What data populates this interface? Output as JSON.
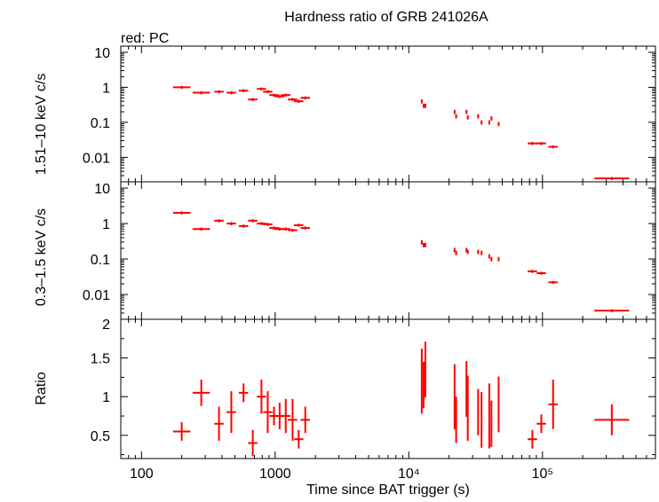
{
  "chart_data": {
    "title": "Hardness ratio of GRB 241026A",
    "legend": "red: PC",
    "series_color": "#ff0000",
    "type": "scatter",
    "x_scale": "log",
    "xlabel": "Time since BAT trigger (s)",
    "xlim": [
      70,
      700000
    ],
    "x_tick_labels": [
      "100",
      "1000",
      "10⁴",
      "10⁵"
    ],
    "panels": [
      {
        "name": "hard-band",
        "ylabel": "1.51–10 keV c/s",
        "y_scale": "log",
        "ylim": [
          0.002,
          15
        ],
        "y_tick_labels": [
          "10",
          "1",
          "0.1",
          "0.01"
        ],
        "points": [
          [
            200,
            1.0
          ],
          [
            280,
            0.7
          ],
          [
            380,
            0.75
          ],
          [
            470,
            0.7
          ],
          [
            580,
            0.8
          ],
          [
            680,
            0.45
          ],
          [
            790,
            0.9
          ],
          [
            880,
            0.75
          ],
          [
            980,
            0.6
          ],
          [
            1080,
            0.55
          ],
          [
            1200,
            0.6
          ],
          [
            1350,
            0.45
          ],
          [
            1500,
            0.4
          ],
          [
            1680,
            0.5
          ],
          [
            12500,
            0.4
          ],
          [
            12900,
            0.3
          ],
          [
            13300,
            0.3
          ],
          [
            22000,
            0.2
          ],
          [
            22600,
            0.15
          ],
          [
            27000,
            0.2
          ],
          [
            27600,
            0.14
          ],
          [
            33000,
            0.15
          ],
          [
            35000,
            0.1
          ],
          [
            40000,
            0.1
          ],
          [
            41500,
            0.13
          ],
          [
            47000,
            0.09
          ],
          [
            84000,
            0.025
          ],
          [
            98000,
            0.025
          ],
          [
            120000,
            0.02
          ],
          [
            330000,
            0.0025
          ]
        ]
      },
      {
        "name": "soft-band",
        "ylabel": "0.3–1.5 keV c/s",
        "y_scale": "log",
        "ylim": [
          0.002,
          15
        ],
        "y_tick_labels": [
          "10",
          "1",
          "0.1",
          "0.01"
        ],
        "points": [
          [
            200,
            2.0
          ],
          [
            280,
            0.7
          ],
          [
            380,
            1.2
          ],
          [
            470,
            1.0
          ],
          [
            580,
            0.85
          ],
          [
            680,
            1.2
          ],
          [
            790,
            1.0
          ],
          [
            880,
            0.95
          ],
          [
            980,
            0.75
          ],
          [
            1080,
            0.7
          ],
          [
            1200,
            0.7
          ],
          [
            1350,
            0.65
          ],
          [
            1500,
            0.9
          ],
          [
            1680,
            0.75
          ],
          [
            12500,
            0.3
          ],
          [
            12900,
            0.25
          ],
          [
            13300,
            0.25
          ],
          [
            22000,
            0.18
          ],
          [
            22600,
            0.15
          ],
          [
            27000,
            0.18
          ],
          [
            27600,
            0.16
          ],
          [
            33000,
            0.16
          ],
          [
            35000,
            0.15
          ],
          [
            40000,
            0.12
          ],
          [
            41500,
            0.1
          ],
          [
            47000,
            0.1
          ],
          [
            84000,
            0.045
          ],
          [
            98000,
            0.04
          ],
          [
            120000,
            0.022
          ],
          [
            330000,
            0.0035
          ]
        ]
      },
      {
        "name": "ratio",
        "ylabel": "Ratio",
        "y_scale": "linear",
        "ylim": [
          0.2,
          2.0
        ],
        "y_ticks": [
          0.5,
          1,
          1.5,
          2
        ],
        "y_tick_labels": [
          "0.5",
          "1",
          "1.5",
          "2"
        ],
        "points": [
          [
            200,
            0.55
          ],
          [
            280,
            1.05
          ],
          [
            380,
            0.65
          ],
          [
            470,
            0.8
          ],
          [
            580,
            1.05
          ],
          [
            680,
            0.4
          ],
          [
            790,
            1.0
          ],
          [
            880,
            0.8
          ],
          [
            980,
            0.75
          ],
          [
            1080,
            0.75
          ],
          [
            1200,
            0.75
          ],
          [
            1350,
            0.7
          ],
          [
            1500,
            0.45
          ],
          [
            1680,
            0.7
          ],
          [
            12500,
            1.2
          ],
          [
            12900,
            1.15
          ],
          [
            13300,
            1.35
          ],
          [
            22000,
            1.0
          ],
          [
            22600,
            0.7
          ],
          [
            27000,
            1.1
          ],
          [
            27600,
            0.85
          ],
          [
            33000,
            0.8
          ],
          [
            35000,
            0.7
          ],
          [
            40000,
            0.75
          ],
          [
            41500,
            0.65
          ],
          [
            47000,
            0.9
          ],
          [
            84000,
            0.45
          ],
          [
            98000,
            0.65
          ],
          [
            120000,
            0.9
          ],
          [
            330000,
            0.7
          ]
        ]
      }
    ]
  }
}
